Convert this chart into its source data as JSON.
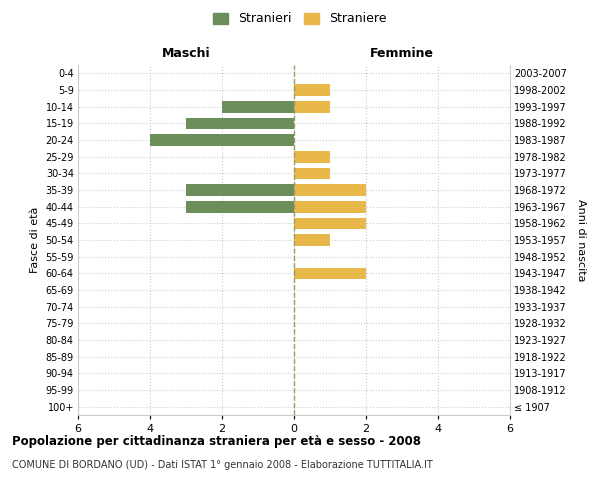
{
  "age_groups": [
    "100+",
    "95-99",
    "90-94",
    "85-89",
    "80-84",
    "75-79",
    "70-74",
    "65-69",
    "60-64",
    "55-59",
    "50-54",
    "45-49",
    "40-44",
    "35-39",
    "30-34",
    "25-29",
    "20-24",
    "15-19",
    "10-14",
    "5-9",
    "0-4"
  ],
  "birth_years": [
    "≤ 1907",
    "1908-1912",
    "1913-1917",
    "1918-1922",
    "1923-1927",
    "1928-1932",
    "1933-1937",
    "1938-1942",
    "1943-1947",
    "1948-1952",
    "1953-1957",
    "1958-1962",
    "1963-1967",
    "1968-1972",
    "1973-1977",
    "1978-1982",
    "1983-1987",
    "1988-1992",
    "1993-1997",
    "1998-2002",
    "2003-2007"
  ],
  "males": [
    0,
    0,
    0,
    0,
    0,
    0,
    0,
    0,
    0,
    0,
    0,
    0,
    3,
    3,
    0,
    0,
    4,
    3,
    2,
    0,
    0
  ],
  "females": [
    0,
    0,
    0,
    0,
    0,
    0,
    0,
    0,
    2,
    0,
    1,
    2,
    2,
    2,
    1,
    1,
    0,
    0,
    1,
    1,
    0
  ],
  "male_color": "#6B8E5A",
  "female_color": "#E8B84B",
  "background_color": "#ffffff",
  "grid_color": "#cccccc",
  "title": "Popolazione per cittadinanza straniera per età e sesso - 2008",
  "subtitle": "COMUNE DI BORDANO (UD) - Dati ISTAT 1° gennaio 2008 - Elaborazione TUTTITALIA.IT",
  "xlabel_left": "Maschi",
  "xlabel_right": "Femmine",
  "ylabel_left": "Fasce di età",
  "ylabel_right": "Anni di nascita",
  "legend_stranieri": "Stranieri",
  "legend_straniere": "Straniere",
  "xlim": 6
}
